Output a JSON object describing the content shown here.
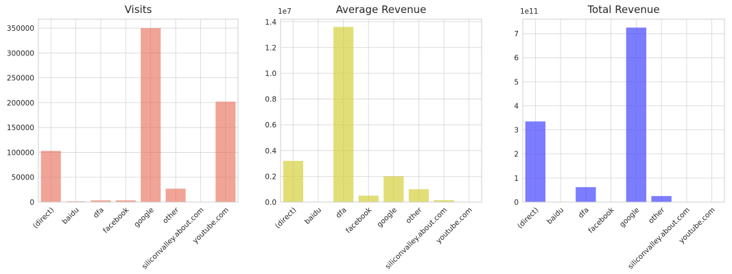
{
  "chart_data": [
    {
      "type": "bar",
      "title": "Visits",
      "categories": [
        "(direct)",
        "baidu",
        "dfa",
        "facebook",
        "google",
        "other",
        "siliconvalley.about.com",
        "youtube.com"
      ],
      "values": [
        103000,
        1500,
        3500,
        3500,
        350000,
        27000,
        500,
        202000
      ],
      "ylim": [
        0,
        368000
      ],
      "yticks": [
        0,
        50000,
        100000,
        150000,
        200000,
        250000,
        300000,
        350000
      ],
      "ytick_labels": [
        "0",
        "50000",
        "100000",
        "150000",
        "200000",
        "250000",
        "300000",
        "350000"
      ],
      "offset_label": "",
      "color": "#e8735f",
      "grid": true
    },
    {
      "type": "bar",
      "title": "Average Revenue",
      "categories": [
        "(direct)",
        "baidu",
        "dfa",
        "facebook",
        "google",
        "other",
        "siliconvalley.about.com",
        "youtube.com"
      ],
      "values": [
        0.32,
        0.0,
        1.36,
        0.05,
        0.2,
        0.1,
        0.015,
        0.0
      ],
      "ylim": [
        0,
        1.42
      ],
      "yticks": [
        0.0,
        0.2,
        0.4,
        0.6,
        0.8,
        1.0,
        1.2,
        1.4
      ],
      "ytick_labels": [
        "0.0",
        "0.2",
        "0.4",
        "0.6",
        "0.8",
        "1.0",
        "1.2",
        "1.4"
      ],
      "offset_label": "1e7",
      "color": "#d4d03f",
      "grid": true
    },
    {
      "type": "bar",
      "title": "Total Revenue",
      "categories": [
        "(direct)",
        "baidu",
        "dfa",
        "facebook",
        "google",
        "other",
        "siliconvalley.about.com",
        "youtube.com"
      ],
      "values": [
        3.35,
        0.0,
        0.62,
        0.0,
        7.25,
        0.25,
        0.0,
        0.0
      ],
      "ylim": [
        0,
        7.6
      ],
      "yticks": [
        0,
        1,
        2,
        3,
        4,
        5,
        6,
        7
      ],
      "ytick_labels": [
        "0",
        "1",
        "2",
        "3",
        "4",
        "5",
        "6",
        "7"
      ],
      "offset_label": "1e11",
      "color": "#5050ff",
      "grid": true
    }
  ]
}
